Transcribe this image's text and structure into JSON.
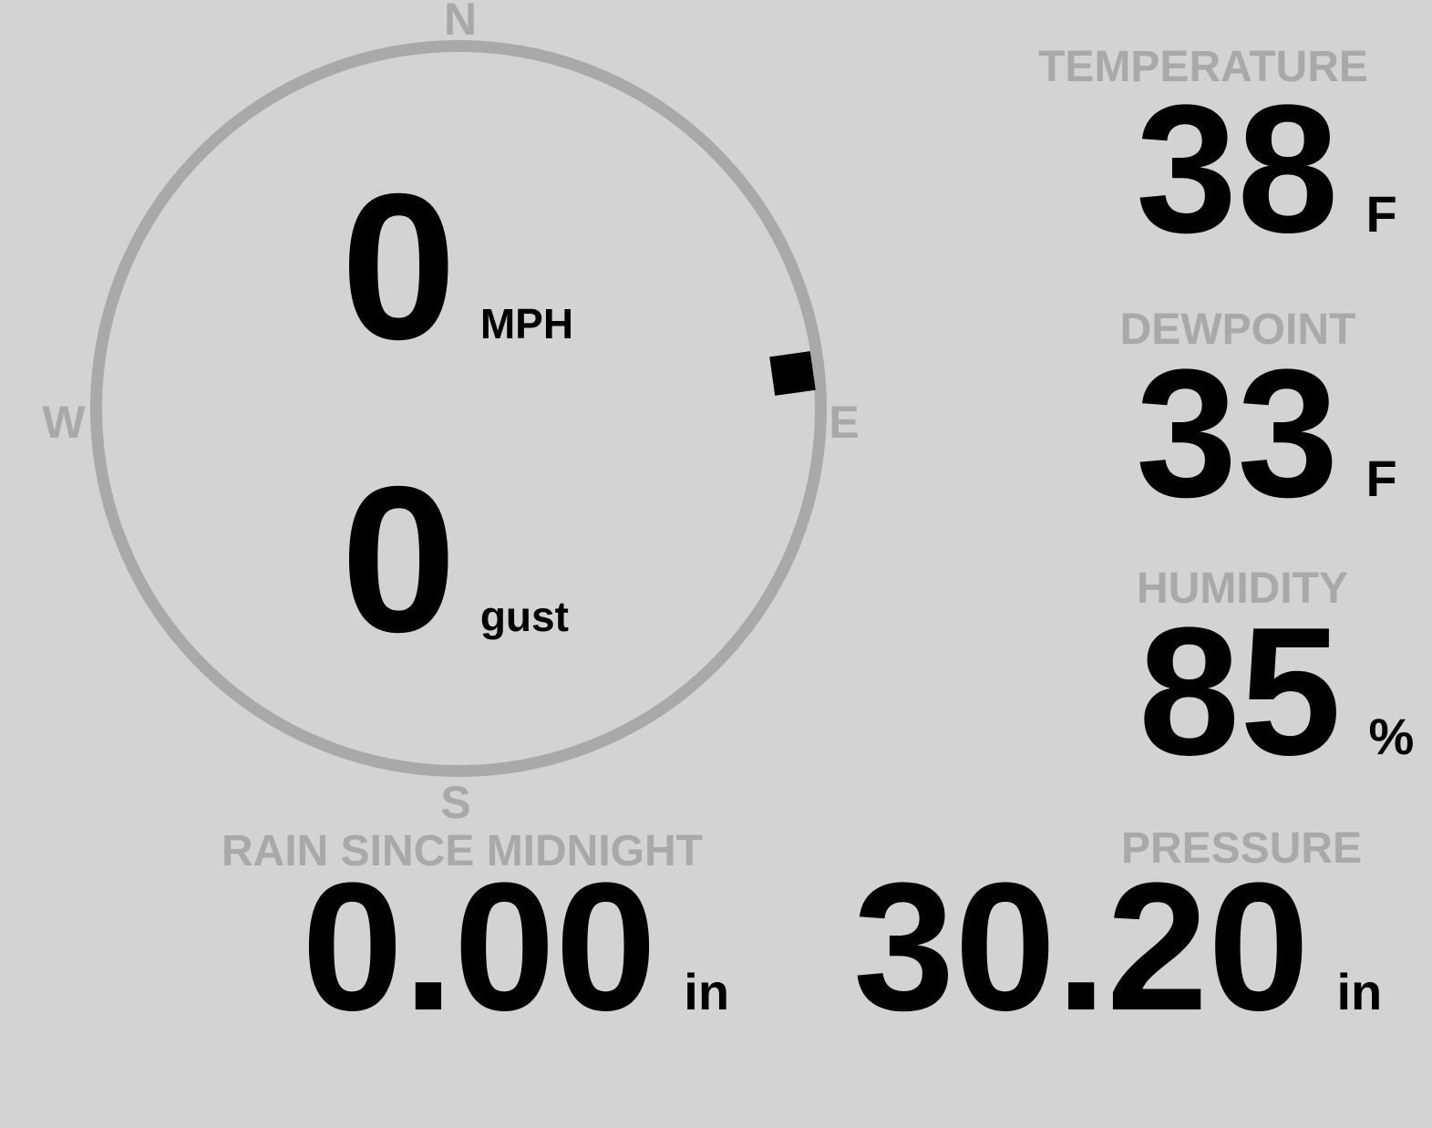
{
  "colors": {
    "background": "#d3d3d3",
    "muted_gray": "#a9a9a9",
    "ink": "#000000"
  },
  "compass": {
    "directions": {
      "north": "N",
      "east": "E",
      "south": "S",
      "west": "W"
    },
    "marker_bearing": "ENE",
    "wind": {
      "speed": "0",
      "speed_unit": "MPH",
      "gust": "0",
      "gust_unit": "gust"
    }
  },
  "metrics": {
    "temperature": {
      "label": "TEMPERATURE",
      "value": "38",
      "unit": "F"
    },
    "dewpoint": {
      "label": "DEWPOINT",
      "value": "33",
      "unit": "F"
    },
    "humidity": {
      "label": "HUMIDITY",
      "value": "85",
      "unit": "%"
    },
    "pressure": {
      "label": "PRESSURE",
      "value": "30.20",
      "unit": "in"
    },
    "rain": {
      "label": "RAIN SINCE MIDNIGHT",
      "value": "0.00",
      "unit": "in"
    }
  }
}
